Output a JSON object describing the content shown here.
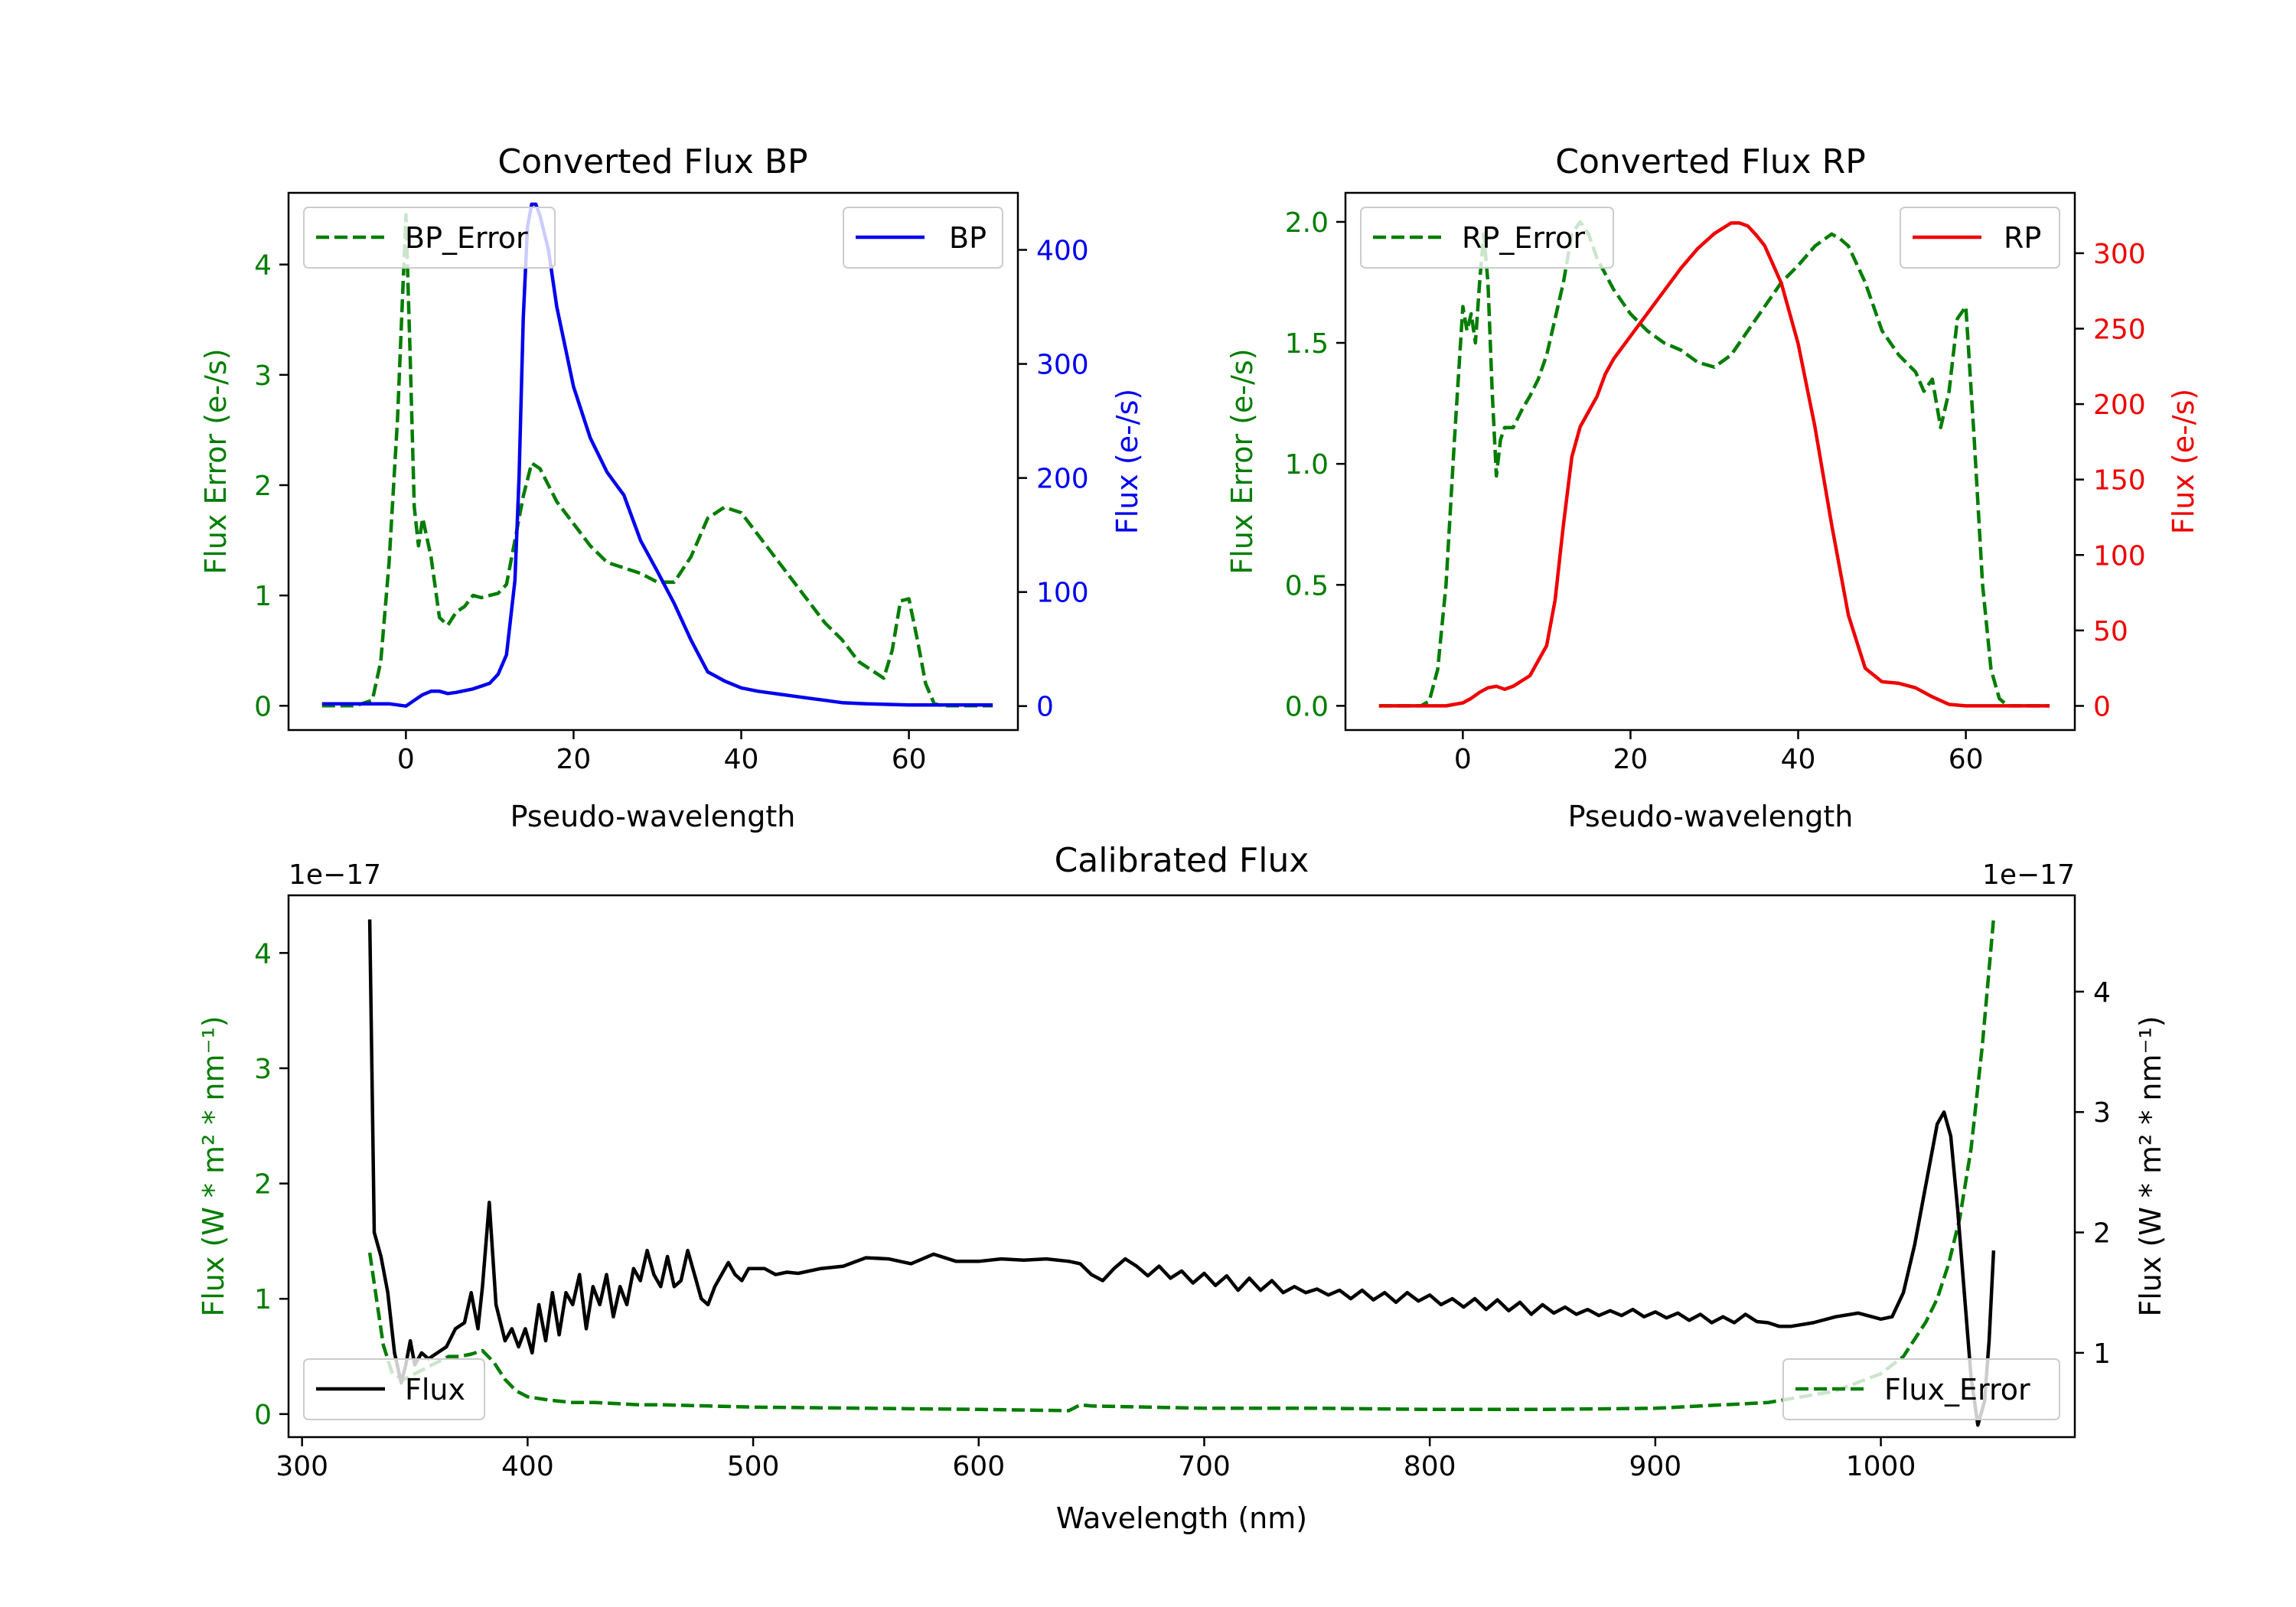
{
  "colors": {
    "green": "#007d00",
    "blue": "#0000ee",
    "red": "#ee0000",
    "black": "#000000"
  },
  "chart_data": [
    {
      "id": "bp",
      "type": "line",
      "title": "Converted Flux BP",
      "xlabel": "Pseudo-wavelength",
      "ylabel_left": "Flux Error (e-/s)",
      "ylabel_right": "Flux (e-/s)",
      "xlim": [
        -14,
        73
      ],
      "ylim_left": [
        -0.22,
        4.65
      ],
      "ylim_right": [
        -21,
        450
      ],
      "xticks": [
        0,
        20,
        40,
        60
      ],
      "xtick_labels": [
        "0",
        "20",
        "40",
        "60"
      ],
      "yticks_left": [
        0,
        1,
        2,
        3,
        4
      ],
      "ytick_labels_left": [
        "0",
        "1",
        "2",
        "3",
        "4"
      ],
      "yticks_right": [
        0,
        100,
        200,
        300,
        400
      ],
      "ytick_labels_right": [
        "0",
        "100",
        "200",
        "300",
        "400"
      ],
      "legend_left": "top-left",
      "legend_right": "top-right",
      "series": [
        {
          "name": "BP_Error",
          "axis": "left",
          "style": "dashed",
          "color": "#007d00",
          "x": [
            -10,
            -6,
            -4,
            -3,
            -2,
            -1,
            0,
            0.5,
            1,
            1.5,
            2,
            3,
            4,
            5,
            6,
            7,
            8,
            9,
            10,
            11,
            12,
            13,
            14,
            15,
            16,
            17,
            18,
            20,
            22,
            24,
            26,
            28,
            30,
            32,
            34,
            36,
            38,
            40,
            42,
            44,
            46,
            48,
            50,
            52,
            54,
            56,
            57,
            58,
            59,
            60,
            61,
            62,
            63,
            64,
            66,
            68,
            70
          ],
          "y": [
            0.0,
            0.0,
            0.05,
            0.4,
            1.3,
            2.6,
            4.45,
            3.2,
            1.8,
            1.45,
            1.7,
            1.35,
            0.8,
            0.73,
            0.85,
            0.9,
            1.0,
            0.98,
            1.0,
            1.02,
            1.1,
            1.5,
            1.9,
            2.2,
            2.15,
            2.0,
            1.85,
            1.65,
            1.45,
            1.3,
            1.25,
            1.2,
            1.12,
            1.12,
            1.35,
            1.7,
            1.8,
            1.75,
            1.55,
            1.35,
            1.15,
            0.95,
            0.75,
            0.6,
            0.4,
            0.3,
            0.25,
            0.5,
            0.95,
            0.97,
            0.6,
            0.2,
            0.02,
            0.0,
            0.0,
            0.0,
            0.0
          ]
        },
        {
          "name": "BP",
          "axis": "right",
          "style": "solid",
          "color": "#0000ee",
          "x": [
            -10,
            -5,
            -2,
            0,
            1,
            2,
            3,
            4,
            5,
            6,
            8,
            10,
            11,
            12,
            13,
            13.5,
            14,
            14.5,
            15,
            15.5,
            16,
            17,
            18,
            20,
            22,
            24,
            25,
            26,
            27,
            28,
            30,
            32,
            34,
            36,
            37,
            38,
            40,
            42,
            44,
            46,
            48,
            50,
            52,
            55,
            60,
            65,
            70
          ],
          "y": [
            2,
            2,
            2,
            0,
            5,
            10,
            13,
            13,
            11,
            12,
            15,
            20,
            28,
            45,
            110,
            200,
            340,
            420,
            440,
            440,
            430,
            400,
            350,
            280,
            235,
            205,
            195,
            185,
            165,
            145,
            118,
            90,
            58,
            30,
            26,
            22,
            16,
            13,
            11,
            9,
            7,
            5,
            3,
            2,
            1,
            1,
            1
          ]
        }
      ]
    },
    {
      "id": "rp",
      "type": "line",
      "title": "Converted Flux RP",
      "xlabel": "Pseudo-wavelength",
      "ylabel_left": "Flux Error (e-/s)",
      "ylabel_right": "Flux (e-/s)",
      "xlim": [
        -14,
        73
      ],
      "ylim_left": [
        -0.1,
        2.12
      ],
      "ylim_right": [
        -16,
        340
      ],
      "xticks": [
        0,
        20,
        40,
        60
      ],
      "xtick_labels": [
        "0",
        "20",
        "40",
        "60"
      ],
      "yticks_left": [
        0,
        0.5,
        1.0,
        1.5,
        2.0
      ],
      "ytick_labels_left": [
        "0.0",
        "0.5",
        "1.0",
        "1.5",
        "2.0"
      ],
      "yticks_right": [
        0,
        50,
        100,
        150,
        200,
        250,
        300
      ],
      "ytick_labels_right": [
        "0",
        "50",
        "100",
        "150",
        "200",
        "250",
        "300"
      ],
      "legend_left": "top-left",
      "legend_right": "top-right",
      "series": [
        {
          "name": "RP_Error",
          "axis": "left",
          "style": "dashed",
          "color": "#007d00",
          "x": [
            -10,
            -5,
            -4,
            -3,
            -2,
            -1,
            0,
            0.5,
            1,
            1.5,
            2,
            2.5,
            3,
            3.5,
            4,
            4.5,
            5,
            6,
            7,
            8,
            9,
            10,
            11,
            12,
            13,
            14,
            15,
            16,
            18,
            20,
            22,
            24,
            26,
            28,
            30,
            32,
            34,
            36,
            38,
            40,
            42,
            44,
            45,
            46,
            48,
            50,
            52,
            54,
            55,
            56,
            57,
            58,
            59,
            60,
            61,
            62,
            63,
            64,
            65,
            66,
            68,
            70
          ],
          "y": [
            0.0,
            0.0,
            0.02,
            0.15,
            0.5,
            1.1,
            1.65,
            1.55,
            1.62,
            1.5,
            1.75,
            1.95,
            1.75,
            1.3,
            0.95,
            1.1,
            1.15,
            1.15,
            1.22,
            1.28,
            1.35,
            1.45,
            1.6,
            1.75,
            1.95,
            2.0,
            1.95,
            1.85,
            1.72,
            1.62,
            1.55,
            1.5,
            1.47,
            1.42,
            1.4,
            1.45,
            1.55,
            1.65,
            1.75,
            1.82,
            1.9,
            1.95,
            1.93,
            1.9,
            1.75,
            1.55,
            1.45,
            1.38,
            1.3,
            1.35,
            1.15,
            1.3,
            1.6,
            1.65,
            1.1,
            0.5,
            0.15,
            0.03,
            0.0,
            0.0,
            0.0,
            0.0
          ]
        },
        {
          "name": "RP",
          "axis": "right",
          "style": "solid",
          "color": "#ee0000",
          "x": [
            -10,
            -5,
            -2,
            0,
            1,
            2,
            3,
            4,
            5,
            6,
            8,
            10,
            11,
            12,
            13,
            14,
            15,
            16,
            17,
            18,
            20,
            22,
            24,
            26,
            28,
            30,
            32,
            33,
            34,
            35,
            36,
            38,
            40,
            42,
            44,
            46,
            48,
            50,
            52,
            54,
            56,
            58,
            60,
            62,
            65,
            70
          ],
          "y": [
            0,
            0,
            0,
            2,
            5,
            9,
            12,
            13,
            11,
            13,
            20,
            40,
            70,
            120,
            165,
            185,
            195,
            205,
            220,
            230,
            245,
            260,
            275,
            290,
            303,
            313,
            320,
            320,
            318,
            312,
            305,
            280,
            240,
            185,
            120,
            60,
            25,
            16,
            15,
            12,
            6,
            1,
            0,
            0,
            0,
            0
          ]
        }
      ]
    },
    {
      "id": "cal",
      "type": "line",
      "title": "Calibrated Flux",
      "xlabel": "Wavelength (nm)",
      "ylabel_left": "Flux (W * m² * nm⁻¹)",
      "ylabel_right": "Flux (W * m² * nm⁻¹)",
      "offset_left": "1e−17",
      "offset_right": "1e−17",
      "xlim": [
        294,
        1086
      ],
      "ylim_left": [
        -0.2,
        4.5
      ],
      "ylim_right": [
        0.3,
        4.8
      ],
      "xticks": [
        300,
        400,
        500,
        600,
        700,
        800,
        900,
        1000
      ],
      "xtick_labels": [
        "300",
        "400",
        "500",
        "600",
        "700",
        "800",
        "900",
        "1000"
      ],
      "yticks_left": [
        0,
        1,
        2,
        3,
        4
      ],
      "ytick_labels_left": [
        "0",
        "1",
        "2",
        "3",
        "4"
      ],
      "yticks_right": [
        1,
        2,
        3,
        4
      ],
      "ytick_labels_right": [
        "1",
        "2",
        "3",
        "4"
      ],
      "legend_left": "bottom-left",
      "legend_right": "bottom-right",
      "series": [
        {
          "name": "Flux_Error",
          "axis": "left",
          "style": "dashed",
          "color": "#007d00",
          "x": [
            330,
            333,
            336,
            340,
            345,
            350,
            355,
            360,
            365,
            370,
            375,
            380,
            385,
            390,
            395,
            400,
            410,
            420,
            430,
            440,
            450,
            460,
            480,
            500,
            550,
            600,
            640,
            645,
            650,
            700,
            750,
            800,
            850,
            900,
            950,
            980,
            1000,
            1010,
            1020,
            1025,
            1030,
            1035,
            1040,
            1045,
            1050
          ],
          "y": [
            1.4,
            1.0,
            0.6,
            0.35,
            0.3,
            0.35,
            0.4,
            0.45,
            0.5,
            0.5,
            0.52,
            0.55,
            0.45,
            0.3,
            0.2,
            0.15,
            0.12,
            0.1,
            0.1,
            0.09,
            0.08,
            0.08,
            0.07,
            0.06,
            0.05,
            0.04,
            0.03,
            0.08,
            0.07,
            0.05,
            0.05,
            0.04,
            0.04,
            0.05,
            0.1,
            0.2,
            0.35,
            0.5,
            0.8,
            1.0,
            1.3,
            1.7,
            2.3,
            3.2,
            4.3
          ]
        },
        {
          "name": "Flux",
          "axis": "right",
          "style": "solid",
          "color": "#000000",
          "x": [
            330,
            332,
            335,
            338,
            341,
            344,
            346,
            348,
            350,
            353,
            356,
            360,
            364,
            368,
            372,
            375,
            378,
            380,
            383,
            386,
            390,
            393,
            396,
            399,
            402,
            405,
            408,
            411,
            414,
            417,
            420,
            423,
            426,
            429,
            432,
            435,
            438,
            441,
            444,
            447,
            450,
            453,
            456,
            459,
            462,
            465,
            468,
            471,
            474,
            477,
            480,
            483,
            486,
            489,
            492,
            495,
            498,
            501,
            505,
            510,
            515,
            520,
            530,
            540,
            550,
            560,
            570,
            580,
            590,
            600,
            610,
            620,
            630,
            640,
            645,
            650,
            655,
            660,
            665,
            670,
            675,
            680,
            685,
            690,
            695,
            700,
            705,
            710,
            715,
            720,
            725,
            730,
            735,
            740,
            745,
            750,
            755,
            760,
            765,
            770,
            775,
            780,
            785,
            790,
            795,
            800,
            805,
            810,
            815,
            820,
            825,
            830,
            835,
            840,
            845,
            850,
            855,
            860,
            865,
            870,
            875,
            880,
            885,
            890,
            895,
            900,
            905,
            910,
            915,
            920,
            925,
            930,
            935,
            940,
            945,
            950,
            955,
            960,
            970,
            980,
            990,
            1000,
            1005,
            1010,
            1015,
            1020,
            1025,
            1028,
            1031,
            1034,
            1037,
            1040,
            1043,
            1046,
            1048,
            1050
          ],
          "y": [
            4.6,
            2.0,
            1.8,
            1.5,
            1.0,
            0.75,
            0.9,
            1.1,
            0.9,
            1.0,
            0.95,
            1.0,
            1.05,
            1.2,
            1.25,
            1.5,
            1.2,
            1.55,
            2.25,
            1.4,
            1.1,
            1.2,
            1.05,
            1.2,
            1.0,
            1.4,
            1.1,
            1.5,
            1.15,
            1.5,
            1.4,
            1.65,
            1.2,
            1.55,
            1.4,
            1.65,
            1.3,
            1.55,
            1.4,
            1.7,
            1.6,
            1.85,
            1.65,
            1.55,
            1.8,
            1.55,
            1.6,
            1.85,
            1.65,
            1.45,
            1.4,
            1.55,
            1.65,
            1.75,
            1.65,
            1.6,
            1.7,
            1.7,
            1.7,
            1.65,
            1.67,
            1.66,
            1.7,
            1.72,
            1.79,
            1.78,
            1.74,
            1.82,
            1.76,
            1.76,
            1.78,
            1.77,
            1.78,
            1.76,
            1.74,
            1.65,
            1.6,
            1.7,
            1.78,
            1.72,
            1.64,
            1.72,
            1.62,
            1.68,
            1.58,
            1.66,
            1.56,
            1.64,
            1.52,
            1.62,
            1.52,
            1.6,
            1.5,
            1.55,
            1.5,
            1.53,
            1.48,
            1.52,
            1.45,
            1.52,
            1.44,
            1.5,
            1.42,
            1.5,
            1.43,
            1.48,
            1.4,
            1.45,
            1.38,
            1.45,
            1.36,
            1.44,
            1.35,
            1.42,
            1.32,
            1.4,
            1.33,
            1.38,
            1.32,
            1.36,
            1.31,
            1.35,
            1.31,
            1.36,
            1.3,
            1.34,
            1.29,
            1.33,
            1.27,
            1.32,
            1.25,
            1.3,
            1.25,
            1.32,
            1.26,
            1.25,
            1.22,
            1.22,
            1.25,
            1.3,
            1.33,
            1.28,
            1.3,
            1.5,
            1.9,
            2.4,
            2.9,
            3.0,
            2.8,
            2.2,
            1.5,
            0.8,
            0.4,
            0.6,
            1.1,
            1.85
          ]
        }
      ]
    }
  ]
}
